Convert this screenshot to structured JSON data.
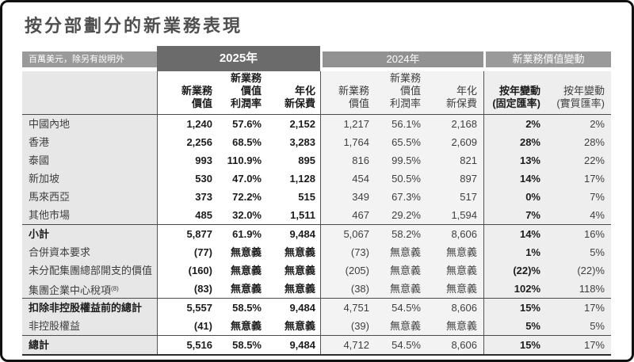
{
  "title": "按分部劃分的新業務表現",
  "colors": {
    "band-dark": "#6b6b6b",
    "band-medium": "#9a9a9a",
    "band-2024": "#929292",
    "label-col-bg": "#e7e7e7",
    "col-2024-bg": "#f3f3f3",
    "col-change-bg": "#eeeeee",
    "text-strong": "#1c1c1c",
    "text-regular": "#3f3f3f",
    "rule": "#4a4a4a"
  },
  "table": {
    "unit_note": "百萬美元，除另有說明外",
    "band_2025": "2025年",
    "band_2024": "2024年",
    "band_change": "新業務價值變動",
    "subheaders": {
      "y2025": [
        [
          "新業務",
          "價值"
        ],
        [
          "新業務",
          "價值",
          "利潤率"
        ],
        [
          "年化",
          "新保費"
        ]
      ],
      "y2024": [
        [
          "新業務",
          "價值"
        ],
        [
          "新業務",
          "價值",
          "利潤率"
        ],
        [
          "年化",
          "新保費"
        ]
      ],
      "change": [
        [
          "按年變動",
          "(固定匯率)"
        ],
        [
          "按年變動",
          "(實質匯率)"
        ]
      ]
    },
    "rows": [
      {
        "label": "中國內地",
        "rule_above": true,
        "v2025": [
          "1,240",
          "57.6%",
          "2,152"
        ],
        "v2024": [
          "1,217",
          "56.1%",
          "2,168"
        ],
        "change": [
          "2%",
          "2%"
        ]
      },
      {
        "label": "香港",
        "v2025": [
          "2,256",
          "68.5%",
          "3,283"
        ],
        "v2024": [
          "1,764",
          "65.5%",
          "2,609"
        ],
        "change": [
          "28%",
          "28%"
        ]
      },
      {
        "label": "泰國",
        "v2025": [
          "993",
          "110.9%",
          "895"
        ],
        "v2024": [
          "816",
          "99.5%",
          "821"
        ],
        "change": [
          "13%",
          "22%"
        ]
      },
      {
        "label": "新加坡",
        "v2025": [
          "530",
          "47.0%",
          "1,128"
        ],
        "v2024": [
          "454",
          "50.5%",
          "897"
        ],
        "change": [
          "14%",
          "17%"
        ]
      },
      {
        "label": "馬來西亞",
        "v2025": [
          "373",
          "72.2%",
          "515"
        ],
        "v2024": [
          "349",
          "67.3%",
          "517"
        ],
        "change": [
          "0%",
          "7%"
        ]
      },
      {
        "label": "其他市場",
        "v2025": [
          "485",
          "32.0%",
          "1,511"
        ],
        "v2024": [
          "467",
          "29.2%",
          "1,594"
        ],
        "change": [
          "7%",
          "4%"
        ]
      },
      {
        "label": "小計",
        "bold": true,
        "rule_above": true,
        "v2025": [
          "5,877",
          "61.9%",
          "9,484"
        ],
        "v2024": [
          "5,067",
          "58.2%",
          "8,606"
        ],
        "change": [
          "14%",
          "16%"
        ]
      },
      {
        "label": "合併資本要求",
        "v2025": [
          "(77)",
          "無意義",
          "無意義"
        ],
        "v2024": [
          "(73)",
          "無意義",
          "無意義"
        ],
        "change": [
          "1%",
          "5%"
        ]
      },
      {
        "label": "未分配集團總部開支的價值",
        "v2025": [
          "(160)",
          "無意義",
          "無意義"
        ],
        "v2024": [
          "(205)",
          "無意義",
          "無意義"
        ],
        "change": [
          "(22)%",
          "(22)%"
        ]
      },
      {
        "label": "集團企業中心稅項",
        "label_sup": "(8)",
        "v2025": [
          "(83)",
          "無意義",
          "無意義"
        ],
        "v2024": [
          "(38)",
          "無意義",
          "無意義"
        ],
        "change": [
          "102%",
          "118%"
        ]
      },
      {
        "label": "扣除非控股權益前的總計",
        "bold": true,
        "rule_above": true,
        "v2025": [
          "5,557",
          "58.5%",
          "9,484"
        ],
        "v2024": [
          "4,751",
          "54.5%",
          "8,606"
        ],
        "change": [
          "15%",
          "17%"
        ]
      },
      {
        "label": "非控股權益",
        "v2025": [
          "(41)",
          "無意義",
          "無意義"
        ],
        "v2024": [
          "(39)",
          "無意義",
          "無意義"
        ],
        "change": [
          "5%",
          "5%"
        ]
      },
      {
        "label": "總計",
        "bold": true,
        "rule_above": true,
        "v2025": [
          "5,516",
          "58.5%",
          "9,484"
        ],
        "v2024": [
          "4,712",
          "54.5%",
          "8,606"
        ],
        "change": [
          "15%",
          "17%"
        ]
      }
    ]
  }
}
